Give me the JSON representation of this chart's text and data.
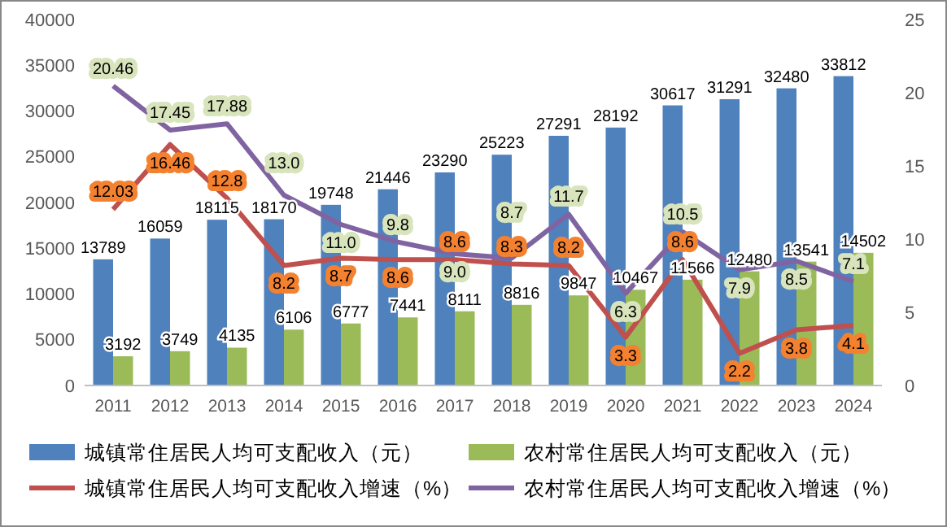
{
  "chart_data": {
    "type": "bar",
    "categories": [
      "2011",
      "2012",
      "2013",
      "2014",
      "2015",
      "2016",
      "2017",
      "2018",
      "2019",
      "2020",
      "2021",
      "2022",
      "2023",
      "2024"
    ],
    "series": [
      {
        "name": "城镇常住居民人均可支配收入（元）",
        "color": "#4f81bd",
        "values": [
          13789,
          16059,
          18115,
          18170,
          19748,
          21446,
          23290,
          25223,
          27291,
          28192,
          30617,
          31291,
          32480,
          33812
        ]
      },
      {
        "name": "农村常住居民人均可支配收入（元）",
        "color": "#9bbb59",
        "values": [
          3192,
          3749,
          4135,
          6106,
          6777,
          7441,
          8111,
          8816,
          9847,
          10467,
          11566,
          12480,
          13541,
          14502
        ]
      },
      {
        "name": "城镇常住居民人均可支配收入增速（%）",
        "type": "line",
        "axis": "y2",
        "color": "#c0504d",
        "values": [
          12.03,
          16.46,
          12.8,
          8.2,
          8.7,
          8.6,
          8.6,
          8.3,
          8.2,
          3.3,
          8.6,
          2.2,
          3.8,
          4.1
        ]
      },
      {
        "name": "农村常住居民人均可支配收入增速（%）",
        "type": "line",
        "axis": "y2",
        "color": "#8064a2",
        "values": [
          20.46,
          17.45,
          17.88,
          13.0,
          11.0,
          9.8,
          9.0,
          8.7,
          11.7,
          6.3,
          10.5,
          7.9,
          8.5,
          7.1
        ],
        "value_labels": [
          "20.46",
          "17.45",
          "17.88",
          "13.0",
          "11.0",
          "9.8",
          "9.0",
          "8.7",
          "11.7",
          "6.3",
          "10.5",
          "7.9",
          "8.5",
          "7.1"
        ]
      }
    ],
    "ylim": [
      0,
      40000
    ],
    "yticks": [
      0,
      5000,
      10000,
      15000,
      20000,
      25000,
      30000,
      35000,
      40000
    ],
    "y2lim": [
      0,
      25
    ],
    "y2ticks": [
      0,
      5,
      10,
      15,
      20,
      25
    ],
    "data_labels": true,
    "legend": "bottom",
    "grid": false
  }
}
